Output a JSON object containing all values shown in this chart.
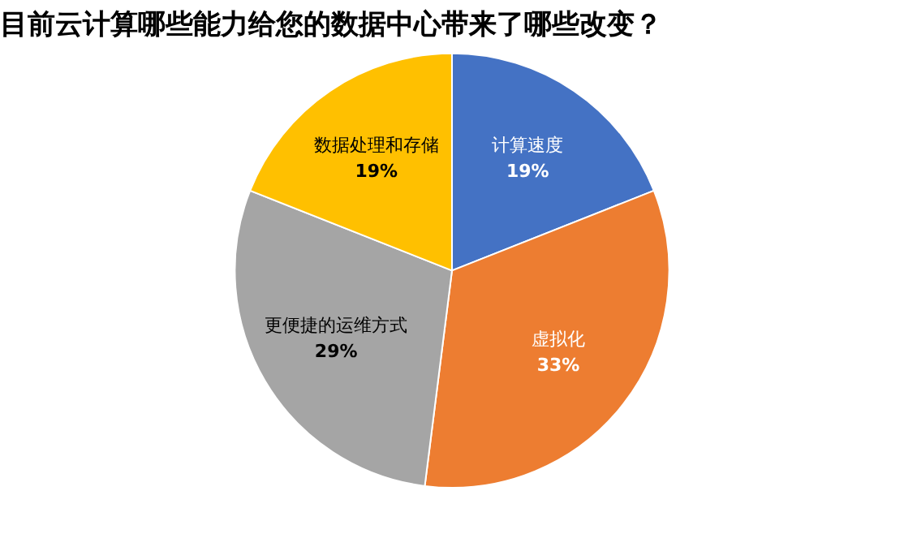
{
  "chart_data": {
    "type": "pie",
    "title": "目前云计算哪些能力给您的数据中心带来了哪些改变？",
    "categories": [
      "计算速度",
      "虚拟化",
      "更便捷的运维方式",
      "数据处理和存储"
    ],
    "values": [
      19,
      33,
      29,
      19
    ],
    "colors": [
      "#4472c4",
      "#ed7d31",
      "#a5a5a5",
      "#ffc000"
    ],
    "value_labels": [
      "19%",
      "33%",
      "29%",
      "19%"
    ],
    "legend": false
  }
}
